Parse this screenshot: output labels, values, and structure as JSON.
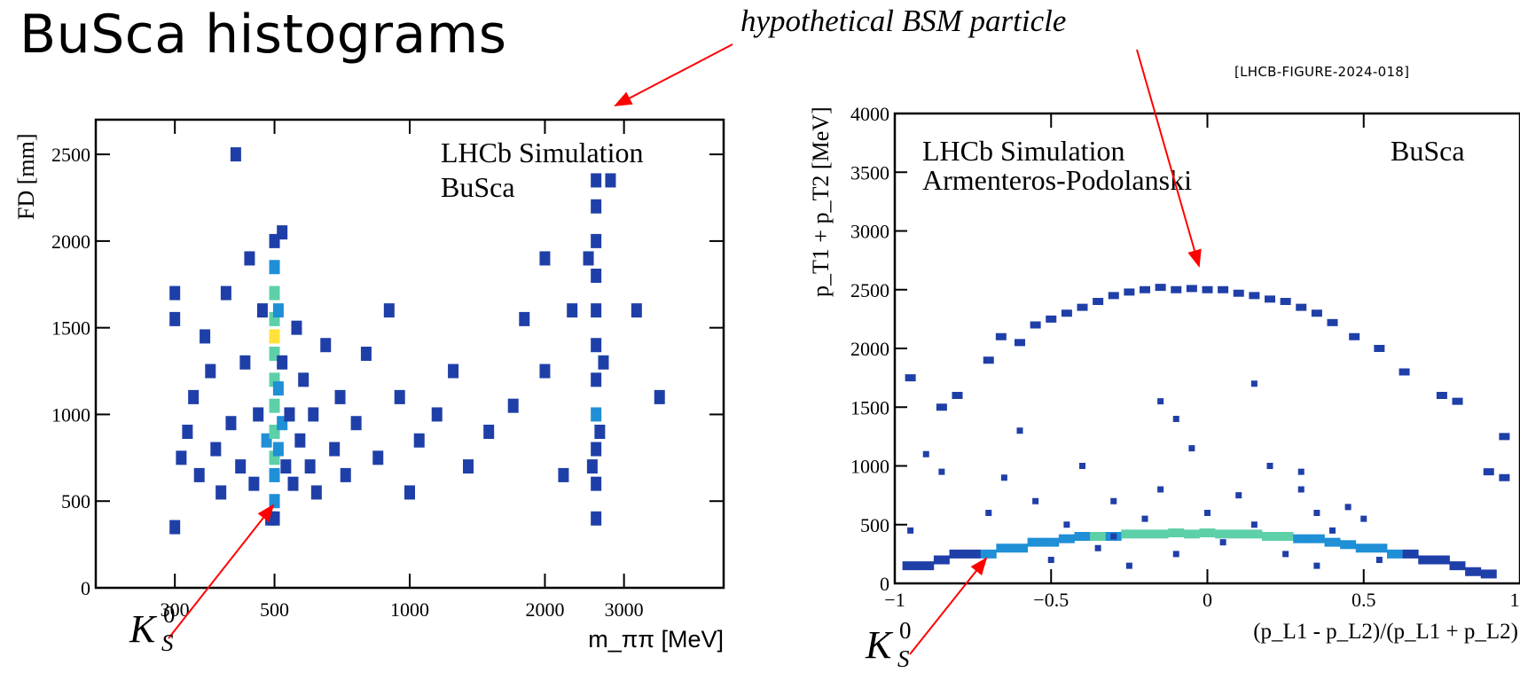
{
  "slide": {
    "title": "BuSca histograms",
    "reference": "[LHCB-FIGURE-2024-018]",
    "bsm_annotation": "hypothetical BSM particle",
    "ks_label": {
      "main": "K",
      "sup": "0",
      "sub": "S"
    }
  },
  "colors": {
    "low": "#1f3fa8",
    "mid": "#1f8fd6",
    "high": "#5ed0a8",
    "peak": "#ffe23a",
    "arrow": "#ff0000",
    "axis": "#000000"
  },
  "chart_data": [
    {
      "type": "heatmap",
      "title_lines": [
        "LHCb Simulation",
        "BuSca"
      ],
      "xlabel": "m_ππ [MeV]",
      "ylabel": "FD [mm]",
      "x_scale": "log",
      "xlim": [
        200,
        5000
      ],
      "ylim": [
        0,
        2700
      ],
      "x_ticks": [
        300,
        500,
        1000,
        2000,
        3000
      ],
      "x_tick_labels": [
        "300",
        "500",
        "1000",
        "2000",
        "3000"
      ],
      "y_ticks": [
        0,
        500,
        1000,
        1500,
        2000,
        2500
      ],
      "y_tick_labels": [
        "0",
        "500",
        "1000",
        "1500",
        "2000",
        "2500"
      ],
      "ks_mass": 500,
      "bsm_mass": 2600,
      "description_of_content": "",
      "cells": [
        [
          300,
          350,
          1
        ],
        [
          300,
          1700,
          1
        ],
        [
          300,
          1550,
          1
        ],
        [
          310,
          750,
          2
        ],
        [
          320,
          900,
          1
        ],
        [
          330,
          1100,
          1
        ],
        [
          340,
          650,
          1
        ],
        [
          350,
          1450,
          1
        ],
        [
          360,
          1250,
          1
        ],
        [
          370,
          800,
          2
        ],
        [
          380,
          550,
          2
        ],
        [
          390,
          1700,
          1
        ],
        [
          400,
          950,
          2
        ],
        [
          410,
          2500,
          1
        ],
        [
          420,
          700,
          3
        ],
        [
          430,
          1300,
          2
        ],
        [
          440,
          1900,
          1
        ],
        [
          450,
          600,
          3
        ],
        [
          460,
          1000,
          3
        ],
        [
          470,
          1600,
          2
        ],
        [
          480,
          850,
          4
        ],
        [
          490,
          400,
          2
        ],
        [
          500,
          650,
          6
        ],
        [
          500,
          750,
          7
        ],
        [
          500,
          900,
          7
        ],
        [
          500,
          1050,
          8
        ],
        [
          500,
          1200,
          8
        ],
        [
          500,
          1350,
          8
        ],
        [
          500,
          1450,
          10
        ],
        [
          500,
          1550,
          8
        ],
        [
          500,
          1700,
          7
        ],
        [
          500,
          1850,
          4
        ],
        [
          500,
          2000,
          3
        ],
        [
          500,
          500,
          5
        ],
        [
          500,
          400,
          3
        ],
        [
          510,
          800,
          5
        ],
        [
          510,
          1150,
          5
        ],
        [
          510,
          1600,
          4
        ],
        [
          520,
          950,
          4
        ],
        [
          520,
          1300,
          3
        ],
        [
          520,
          2050,
          2
        ],
        [
          530,
          700,
          3
        ],
        [
          540,
          1000,
          2
        ],
        [
          550,
          600,
          2
        ],
        [
          560,
          1500,
          1
        ],
        [
          570,
          850,
          2
        ],
        [
          580,
          1200,
          1
        ],
        [
          600,
          700,
          1
        ],
        [
          610,
          1000,
          1
        ],
        [
          620,
          550,
          1
        ],
        [
          650,
          1400,
          1
        ],
        [
          680,
          800,
          1
        ],
        [
          700,
          1100,
          1
        ],
        [
          720,
          650,
          1
        ],
        [
          760,
          950,
          1
        ],
        [
          800,
          1350,
          1
        ],
        [
          850,
          750,
          1
        ],
        [
          900,
          1600,
          1
        ],
        [
          950,
          1100,
          1
        ],
        [
          1000,
          550,
          1
        ],
        [
          1050,
          850,
          1
        ],
        [
          1150,
          1000,
          1
        ],
        [
          1250,
          1250,
          1
        ],
        [
          1350,
          700,
          1
        ],
        [
          1500,
          900,
          1
        ],
        [
          1700,
          1050,
          1
        ],
        [
          1800,
          1550,
          1
        ],
        [
          2000,
          1250,
          1
        ],
        [
          2000,
          1900,
          1
        ],
        [
          2200,
          650,
          1
        ],
        [
          2300,
          1600,
          1
        ],
        [
          2500,
          1900,
          1
        ],
        [
          2600,
          400,
          2
        ],
        [
          2600,
          600,
          3
        ],
        [
          2600,
          800,
          3
        ],
        [
          2600,
          1000,
          4
        ],
        [
          2600,
          1200,
          3
        ],
        [
          2600,
          1400,
          3
        ],
        [
          2600,
          1600,
          2
        ],
        [
          2600,
          1800,
          2
        ],
        [
          2600,
          2000,
          2
        ],
        [
          2600,
          2200,
          1
        ],
        [
          2600,
          2350,
          1
        ],
        [
          2550,
          700,
          2
        ],
        [
          2650,
          900,
          2
        ],
        [
          2700,
          1300,
          1
        ],
        [
          2800,
          2350,
          1
        ],
        [
          3200,
          1600,
          1
        ],
        [
          3600,
          1100,
          1
        ]
      ]
    },
    {
      "type": "heatmap",
      "title_lines": [
        "LHCb Simulation",
        "Armenteros-Podolanski"
      ],
      "corner_label": "BuSca",
      "xlabel": "(p_L1 - p_L2)/(p_L1 + p_L2)",
      "ylabel": "p_T1 + p_T2 [MeV]",
      "xlim": [
        -1,
        1
      ],
      "ylim": [
        0,
        4000
      ],
      "x_ticks": [
        -1,
        -0.5,
        0,
        0.5,
        1
      ],
      "x_tick_labels": [
        "−1",
        "−0.5",
        "0",
        "0.5",
        "1"
      ],
      "y_ticks": [
        0,
        500,
        1000,
        1500,
        2000,
        2500,
        3000,
        3500,
        4000
      ],
      "y_tick_labels": [
        "0",
        "500",
        "1000",
        "1500",
        "2000",
        "2500",
        "3000",
        "3500",
        "4000"
      ],
      "arc_cells": [
        [
          -0.95,
          1750,
          1
        ],
        [
          -0.85,
          1500,
          1
        ],
        [
          -0.8,
          1600,
          1
        ],
        [
          -0.7,
          1900,
          1
        ],
        [
          -0.66,
          2100,
          1
        ],
        [
          -0.6,
          2050,
          2
        ],
        [
          -0.55,
          2200,
          1
        ],
        [
          -0.5,
          2250,
          2
        ],
        [
          -0.45,
          2300,
          2
        ],
        [
          -0.4,
          2350,
          1
        ],
        [
          -0.35,
          2400,
          2
        ],
        [
          -0.3,
          2450,
          2
        ],
        [
          -0.25,
          2480,
          2
        ],
        [
          -0.2,
          2500,
          3
        ],
        [
          -0.15,
          2520,
          3
        ],
        [
          -0.1,
          2500,
          3
        ],
        [
          -0.05,
          2510,
          3
        ],
        [
          0,
          2500,
          3
        ],
        [
          0.05,
          2500,
          3
        ],
        [
          0.1,
          2470,
          2
        ],
        [
          0.15,
          2450,
          2
        ],
        [
          0.2,
          2420,
          2
        ],
        [
          0.25,
          2400,
          2
        ],
        [
          0.3,
          2350,
          2
        ],
        [
          0.35,
          2300,
          2
        ],
        [
          0.4,
          2220,
          1
        ],
        [
          0.47,
          2100,
          1
        ],
        [
          0.55,
          2000,
          1
        ],
        [
          0.63,
          1800,
          1
        ],
        [
          0.75,
          1600,
          1
        ],
        [
          0.8,
          1550,
          1
        ],
        [
          0.95,
          1250,
          1
        ],
        [
          0.9,
          950,
          1
        ],
        [
          0.95,
          900,
          1
        ]
      ],
      "band_cells": [
        [
          -0.95,
          150,
          1
        ],
        [
          -0.9,
          150,
          2
        ],
        [
          -0.85,
          200,
          2
        ],
        [
          -0.8,
          250,
          2
        ],
        [
          -0.75,
          250,
          3
        ],
        [
          -0.7,
          250,
          4
        ],
        [
          -0.65,
          300,
          5
        ],
        [
          -0.6,
          300,
          4
        ],
        [
          -0.55,
          350,
          5
        ],
        [
          -0.5,
          350,
          6
        ],
        [
          -0.45,
          380,
          5
        ],
        [
          -0.4,
          400,
          6
        ],
        [
          -0.35,
          400,
          7
        ],
        [
          -0.3,
          400,
          6
        ],
        [
          -0.25,
          420,
          7
        ],
        [
          -0.2,
          420,
          7
        ],
        [
          -0.15,
          420,
          8
        ],
        [
          -0.1,
          430,
          7
        ],
        [
          -0.05,
          420,
          8
        ],
        [
          0,
          430,
          8
        ],
        [
          0.05,
          420,
          8
        ],
        [
          0.1,
          420,
          7
        ],
        [
          0.15,
          420,
          7
        ],
        [
          0.2,
          400,
          7
        ],
        [
          0.25,
          400,
          7
        ],
        [
          0.3,
          380,
          6
        ],
        [
          0.35,
          380,
          6
        ],
        [
          0.4,
          350,
          5
        ],
        [
          0.45,
          330,
          5
        ],
        [
          0.5,
          300,
          5
        ],
        [
          0.55,
          300,
          4
        ],
        [
          0.6,
          250,
          4
        ],
        [
          0.65,
          250,
          3
        ],
        [
          0.7,
          200,
          3
        ],
        [
          0.75,
          200,
          2
        ],
        [
          0.8,
          150,
          2
        ],
        [
          0.85,
          100,
          1
        ],
        [
          0.9,
          80,
          1
        ]
      ],
      "scatter_cells": [
        [
          -0.95,
          450,
          1
        ],
        [
          -0.9,
          1100,
          1
        ],
        [
          -0.85,
          950,
          1
        ],
        [
          -0.7,
          600,
          1
        ],
        [
          -0.65,
          900,
          1
        ],
        [
          -0.6,
          1300,
          1
        ],
        [
          -0.55,
          700,
          1
        ],
        [
          -0.5,
          200,
          1
        ],
        [
          -0.45,
          500,
          1
        ],
        [
          -0.4,
          1000,
          1
        ],
        [
          -0.35,
          300,
          1
        ],
        [
          -0.3,
          700,
          1
        ],
        [
          -0.25,
          150,
          1
        ],
        [
          -0.2,
          550,
          1
        ],
        [
          -0.15,
          800,
          1
        ],
        [
          -0.1,
          250,
          1
        ],
        [
          -0.05,
          1150,
          1
        ],
        [
          0,
          600,
          1
        ],
        [
          0.05,
          350,
          1
        ],
        [
          0.1,
          750,
          1
        ],
        [
          0.15,
          500,
          1
        ],
        [
          0.2,
          1000,
          1
        ],
        [
          0.25,
          250,
          1
        ],
        [
          0.3,
          800,
          1
        ],
        [
          0.35,
          600,
          1
        ],
        [
          0.4,
          450,
          1
        ],
        [
          0.45,
          650,
          1
        ],
        [
          0.5,
          550,
          1
        ],
        [
          0.55,
          200,
          1
        ],
        [
          -0.15,
          1550,
          1
        ],
        [
          -0.1,
          1400,
          1
        ],
        [
          0.15,
          1700,
          1
        ],
        [
          0.3,
          950,
          1
        ],
        [
          -0.3,
          400,
          1
        ],
        [
          0.35,
          150,
          1
        ]
      ]
    }
  ]
}
